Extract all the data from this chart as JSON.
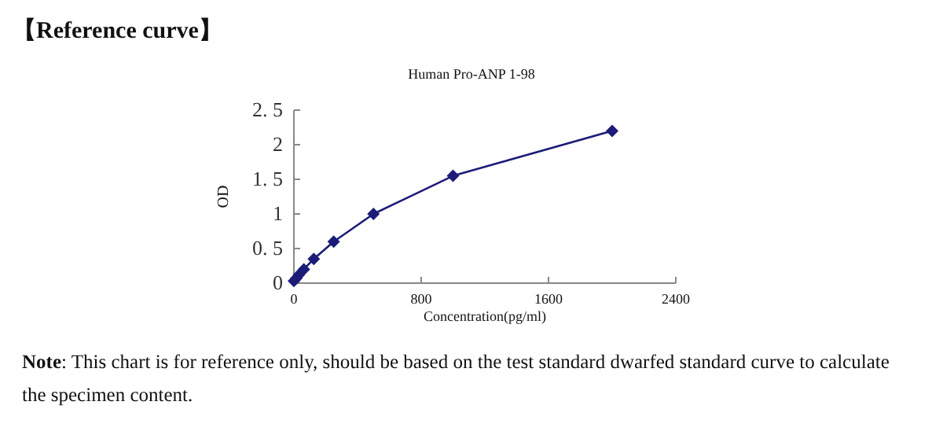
{
  "chart_data": {
    "type": "line",
    "title": "【Reference curve】",
    "subtitle": "Human Pro-ANP 1-98",
    "xlabel": "Concentration(pg/ml)",
    "ylabel": "OD",
    "x": [
      0,
      15.6,
      31.25,
      62.5,
      125,
      250,
      500,
      1000,
      2000
    ],
    "series": [
      {
        "color": "#1c1c78",
        "values": [
          0.03,
          0.07,
          0.12,
          0.2,
          0.35,
          0.6,
          1.0,
          1.55,
          2.2
        ]
      }
    ],
    "xlim": [
      0,
      2400
    ],
    "xticks": [
      0,
      800,
      1600,
      2400
    ],
    "ylim": [
      0,
      2.5
    ],
    "yticks": [
      0,
      {
        "value": 0.5,
        "label": "0. 5"
      },
      1,
      {
        "value": 1.5,
        "label": "1. 5"
      },
      2,
      {
        "value": 2.5,
        "label": "2. 5"
      }
    ],
    "marker": "diamond",
    "grid": false,
    "annotations": [
      "**Note**: This chart is for reference only, should be based on the test standard dwarfed standard curve to calculate the specimen content."
    ]
  }
}
